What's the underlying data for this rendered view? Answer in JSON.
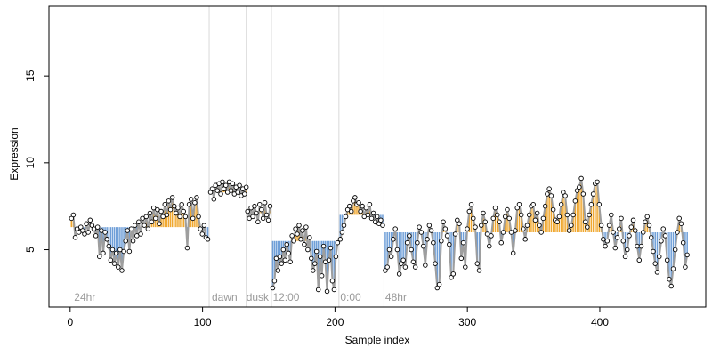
{
  "chart_data": {
    "type": "scatter",
    "xlabel": "Sample index",
    "ylabel": "Expression",
    "xlim": [
      -16,
      480
    ],
    "ylim": [
      1.7,
      19.0
    ],
    "x_ticks": [
      0,
      100,
      200,
      300,
      400
    ],
    "y_ticks": [
      5,
      10,
      15
    ],
    "grid": false,
    "legend": "none",
    "colors": {
      "line": "#9e9e9e",
      "above_stem": "#f0a830",
      "below_stem": "#6f9fd8",
      "point_fill": "#ffffff",
      "point_outline": "#000000",
      "divider": "#d9d9d9",
      "condition_label": "#9a9a9a"
    },
    "condition_labels": [
      {
        "label": "24hr",
        "x": 3
      },
      {
        "label": "dawn",
        "x": 107
      },
      {
        "label": "dusk",
        "x": 133
      },
      {
        "label": "12:00",
        "x": 153
      },
      {
        "label": "0:00",
        "x": 204
      },
      {
        "label": "48hr",
        "x": 238
      }
    ],
    "dividers": [
      105,
      133,
      152,
      203,
      237
    ],
    "segments": [
      {
        "x0": 1,
        "x1": 104,
        "mean": 6.3,
        "values": [
          6.8,
          7.0,
          5.7,
          6.2,
          6.0,
          6.3,
          6.1,
          5.9,
          6.5,
          6.0,
          6.7,
          6.4,
          6.2,
          5.8,
          6.3,
          4.6,
          6.1,
          4.8,
          6.0,
          5.6,
          5.2,
          4.4,
          5.0,
          4.2,
          4.8,
          4.0,
          5.0,
          3.8,
          4.9,
          5.5,
          6.1,
          4.9,
          6.2,
          5.5,
          6.4,
          5.8,
          6.6,
          5.9,
          6.8,
          6.4,
          6.9,
          6.2,
          7.1,
          6.6,
          7.4,
          6.8,
          7.3,
          6.5,
          7.2,
          6.9,
          7.6,
          7.0,
          7.8,
          7.3,
          8.0,
          7.5,
          7.1,
          7.4,
          6.9,
          7.6,
          7.2,
          6.9,
          5.1,
          7.6,
          7.9,
          6.8,
          7.7,
          8.0,
          6.9,
          6.2,
          5.9,
          6.4,
          5.7,
          5.6
        ]
      },
      {
        "x0": 106,
        "x1": 133,
        "mean": 8.3,
        "values": [
          8.3,
          8.5,
          7.9,
          8.7,
          8.4,
          8.8,
          8.2,
          8.9,
          8.5,
          8.7,
          8.3,
          8.9,
          8.4,
          8.8,
          8.2,
          8.6,
          8.3,
          8.7,
          8.1,
          8.5,
          8.2,
          8.6
        ]
      },
      {
        "x0": 134,
        "x1": 151,
        "mean": 7.1,
        "values": [
          7.2,
          6.8,
          7.4,
          6.9,
          7.5,
          7.1,
          6.6,
          7.6,
          7.3,
          6.8,
          7.7,
          7.0,
          6.7,
          7.5
        ]
      },
      {
        "x0": 153,
        "x1": 202,
        "mean": 5.5,
        "values": [
          2.8,
          3.2,
          4.5,
          3.8,
          4.6,
          4.2,
          5.0,
          4.4,
          5.3,
          4.8,
          4.3,
          5.8,
          5.5,
          6.2,
          5.9,
          6.4,
          5.6,
          6.1,
          5.3,
          6.3,
          5.0,
          5.7,
          4.5,
          3.8,
          4.2,
          4.9,
          2.7,
          4.6,
          3.5,
          5.2,
          4.3,
          2.6,
          4.4,
          5.1,
          3.2,
          2.7,
          4.6,
          5.4
        ]
      },
      {
        "x0": 204,
        "x1": 236,
        "mean": 7.0,
        "values": [
          5.6,
          6.0,
          6.4,
          6.9,
          7.3,
          7.5,
          7.2,
          7.8,
          8.0,
          7.6,
          7.7,
          7.2,
          7.5,
          6.9,
          7.4,
          7.0,
          7.6,
          6.8,
          7.1,
          6.6,
          6.9,
          6.5,
          6.7,
          6.4
        ]
      },
      {
        "x0": 238,
        "x1": 466,
        "mean": 6.0,
        "values": [
          3.8,
          4.0,
          5.0,
          4.6,
          5.6,
          6.2,
          5.0,
          3.6,
          4.2,
          4.4,
          4.0,
          5.4,
          5.8,
          5.0,
          4.3,
          4.0,
          5.4,
          6.3,
          6.0,
          5.2,
          4.1,
          5.6,
          6.4,
          6.1,
          5.4,
          4.2,
          2.8,
          3.0,
          5.5,
          6.6,
          6.2,
          5.8,
          5.3,
          3.4,
          3.6,
          5.9,
          6.7,
          6.5,
          4.5,
          5.4,
          4.0,
          6.2,
          7.2,
          7.6,
          6.8,
          6.3,
          4.2,
          3.8,
          6.4,
          7.1,
          6.6,
          5.9,
          5.2,
          5.8,
          6.8,
          7.4,
          7.0,
          6.6,
          5.4,
          6.0,
          6.9,
          7.3,
          6.8,
          6.0,
          4.8,
          6.1,
          7.4,
          7.6,
          7.0,
          6.2,
          5.6,
          6.4,
          7.0,
          7.5,
          7.6,
          6.7,
          7.1,
          6.4,
          6.0,
          6.8,
          7.5,
          8.2,
          8.5,
          8.1,
          7.3,
          6.7,
          6.6,
          6.9,
          7.6,
          8.3,
          8.1,
          7.0,
          6.1,
          6.4,
          7.0,
          7.8,
          8.4,
          8.6,
          9.1,
          8.2,
          6.6,
          6.3,
          7.0,
          7.6,
          8.2,
          8.8,
          8.9,
          7.6,
          6.4,
          5.6,
          5.2,
          5.5,
          6.4,
          7.0,
          6.0,
          5.1,
          5.7,
          6.2,
          6.8,
          5.5,
          4.6,
          5.0,
          5.8,
          6.3,
          6.7,
          6.1,
          5.2,
          4.4,
          5.2,
          6.0,
          6.6,
          6.9,
          6.4,
          5.7,
          4.9,
          4.2,
          3.7,
          4.6,
          5.5,
          6.2,
          5.8,
          4.4,
          3.3,
          2.9,
          3.9,
          5.0,
          6.0,
          6.8,
          6.5,
          5.4,
          4.0,
          4.7
        ]
      }
    ]
  }
}
